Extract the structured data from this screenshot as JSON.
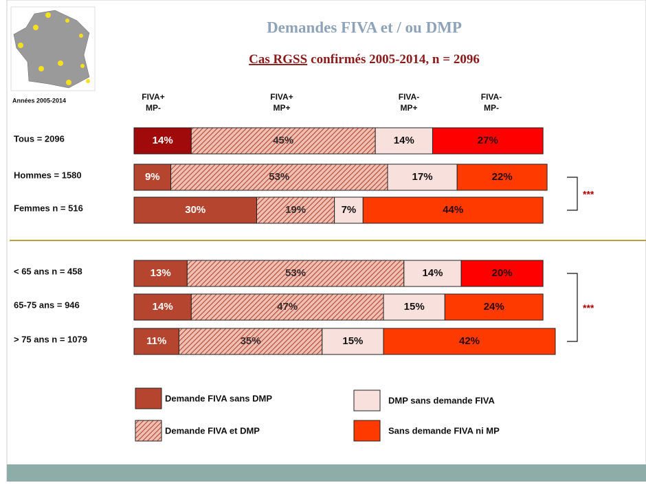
{
  "chart_data": {
    "type": "stacked_bar_h",
    "title": "Demandes FIVA et / ou DMP",
    "subtitle_part1": "Cas RGSS",
    "subtitle_part2": "confirmés 2005-2014, n = 2096",
    "map_label": "Années 2005-2014",
    "headers": [
      [
        "FIVA+",
        "MP-"
      ],
      [
        "FIVA+",
        "MP+"
      ],
      [
        "FIVA-",
        "MP+"
      ],
      [
        "FIVA-",
        "MP-"
      ]
    ],
    "categories": [
      "Tous = 2096",
      "Hommes = 1580",
      "Femmes n = 516",
      "< 65 ans n = 458",
      "65-75 ans = 946",
      "> 75 ans n = 1079"
    ],
    "series": [
      {
        "name": "Demande  FIVA sans DMP",
        "colors": [
          "#a00a0a",
          "#b5452f",
          "#b5452f",
          "#b5452f",
          "#b5452f",
          "#b5452f"
        ],
        "label_color": "#ffffff",
        "values": [
          14,
          9,
          30,
          13,
          14,
          11
        ],
        "value_labels": [
          "14%",
          "9%",
          "30%",
          "13%",
          "14%",
          "11%"
        ]
      },
      {
        "name": "Demande FIVA et DMP",
        "pattern": "hatch",
        "label_color": "#3a2a2a",
        "values": [
          45,
          53,
          19,
          53,
          47,
          35
        ],
        "value_labels": [
          "45%",
          "53%",
          "19%",
          "53%",
          "47%",
          "35%"
        ]
      },
      {
        "name": "DMP sans demande FIVA",
        "colors": [
          "#f8e0dc",
          "#f8e0dc",
          "#f8e0dc",
          "#f8e0dc",
          "#f8e0dc",
          "#f8e0dc"
        ],
        "label_color": "#111111",
        "values": [
          14,
          17,
          7,
          14,
          15,
          15
        ],
        "value_labels": [
          "14%",
          "17%",
          "7%",
          "14%",
          "15%",
          "15%"
        ]
      },
      {
        "name": "Sans demande FIVA ni MP",
        "colors": [
          "#ff0000",
          "#ff3a00",
          "#ff3a00",
          "#ff0000",
          "#ff3a00",
          "#ff3a00"
        ],
        "label_color": "#2a0a0a",
        "values": [
          27,
          22,
          44,
          20,
          24,
          42
        ],
        "value_labels": [
          "27%",
          "22%",
          "44%",
          "20%",
          "24%",
          "42%"
        ]
      }
    ],
    "annotations": [
      "***",
      "***"
    ]
  }
}
